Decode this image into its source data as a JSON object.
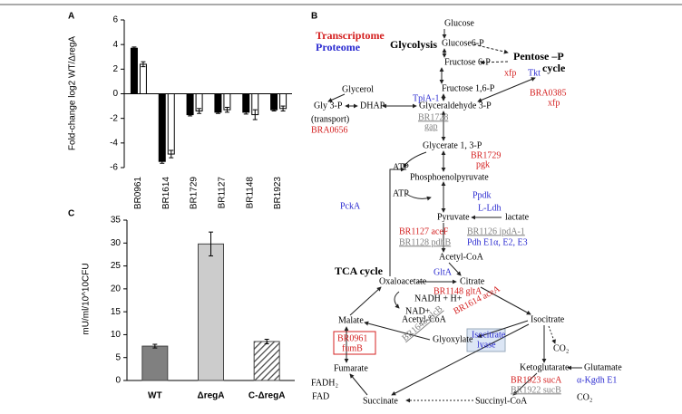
{
  "chart_data": [
    {
      "type": "bar",
      "panel_label": "A",
      "ylabel": "Fold-change log2 WT/ΔregA",
      "categories": [
        "BR0961",
        "BR1614",
        "BR1729",
        "BR1127",
        "BR1148",
        "BR1923"
      ],
      "series": [
        {
          "color": "#000000",
          "values": [
            3.7,
            -5.5,
            -1.7,
            -1.5,
            -1.5,
            -1.3
          ],
          "errors": [
            0.1,
            0.15,
            0.1,
            0.1,
            0.15,
            0.1
          ]
        },
        {
          "color": "#ffffff",
          "values": [
            2.4,
            -4.9,
            -1.4,
            -1.3,
            -1.7,
            -1.2
          ],
          "errors": [
            0.2,
            0.3,
            0.2,
            0.2,
            0.4,
            0.2
          ]
        }
      ],
      "ylim": [
        -6,
        6
      ],
      "yticks": [
        -6,
        -4,
        -2,
        0,
        2,
        4,
        6
      ]
    },
    {
      "type": "bar",
      "panel_label": "C",
      "ylabel": "mU/ml/10^10CFU",
      "categories": [
        "WT",
        "ΔregA",
        "C-ΔregA"
      ],
      "values": [
        7.5,
        29.8,
        8.5
      ],
      "errors": [
        0.4,
        2.6,
        0.5
      ],
      "colors": [
        "#808080",
        "#cccccc",
        "#808080"
      ],
      "hatched": [
        false,
        false,
        true
      ],
      "ylim": [
        0,
        35
      ],
      "yticks": [
        0,
        5,
        10,
        15,
        20,
        25,
        30,
        35
      ]
    }
  ],
  "diagram": {
    "panel_label": "B",
    "labels": [
      "Transcriptome",
      "Proteome",
      "Glycolysis",
      "Glucose",
      "Glucose6-P",
      "Pentose –P",
      "cycle",
      "Fructose 6-P",
      "xfp",
      "Tkt",
      "Fructose 1,6-P",
      "BRA0385",
      "xfp",
      "Glycerol",
      "TpiA-1",
      "Gly 3-P",
      "DHAP",
      "Glyceraldehyde 3-P",
      "(transport)",
      "BRA0656",
      "BR1728",
      "gap",
      "Glycerate 1, 3-P",
      "BR1729",
      "pgk",
      "ATP",
      "Phosphoenolpyruvate",
      "Ppdk",
      "ATP",
      "PckA",
      "L-Ldh",
      "Pyruvate",
      "lactate",
      "BR1127 aceF",
      "BR1126 ipdA-1",
      "BR1128 pdhB",
      "Pdh E1α, E2, E3",
      "Acetyl-CoA",
      "GltA",
      "TCA cycle",
      "Oxaloacetate",
      "Citrate",
      "BR1148 gltA",
      "NADH + H+",
      "NAD+",
      "Acetyl-CoA",
      "Isocitrate",
      "Malate",
      "BR1614 aceA",
      "BR1648 glcB",
      "BR0961",
      "fumB",
      "Glyoxylate",
      "Isocitrate",
      "lyase",
      "CO₂",
      "Ketoglutarate",
      "Glutamate",
      "Fumarate",
      "FADH₂",
      "BR1923 sucA",
      "α-Kgdh E1",
      "BR1922 sucB",
      "CO₂",
      "FAD",
      "Succinate",
      "Succinyl-CoA"
    ]
  }
}
